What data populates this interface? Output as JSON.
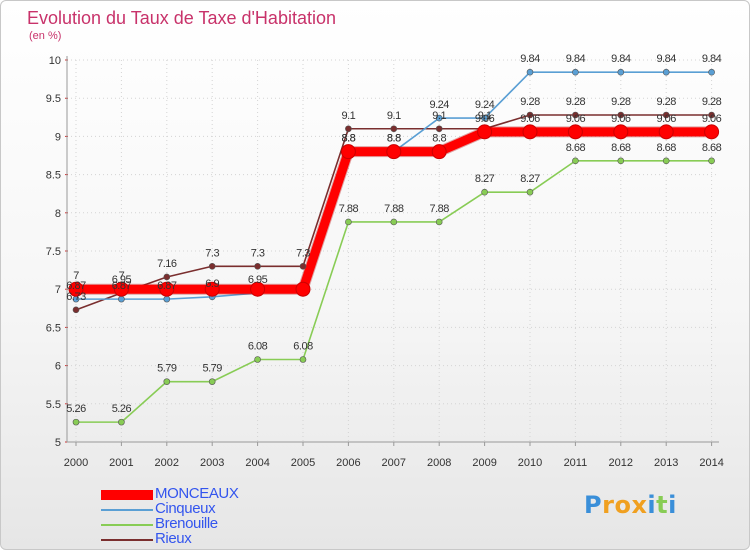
{
  "header": {
    "title": "Evolution du Taux de Taxe d'Habitation",
    "unit": "(en %)"
  },
  "chart_data": {
    "type": "line",
    "title": "Evolution du Taux de Taxe d'Habitation",
    "ylabel": "(en %)",
    "xlabel": "",
    "x": [
      "2000",
      "2001",
      "2002",
      "2003",
      "2004",
      "2005",
      "2006",
      "2007",
      "2008",
      "2009",
      "2010",
      "2011",
      "2012",
      "2013",
      "2014"
    ],
    "ylim": [
      5,
      10
    ],
    "yticks": [
      "5",
      "5.5",
      "6",
      "6.5",
      "7",
      "7.5",
      "8",
      "8.5",
      "9",
      "9.5",
      "10"
    ],
    "grid": true,
    "legend_position": "bottom-left",
    "series": [
      {
        "name": "MONCEAUX",
        "color": "#ff0000",
        "values": [
          7,
          7,
          7,
          7,
          7,
          7,
          8.8,
          8.8,
          8.8,
          9.06,
          9.06,
          9.06,
          9.06,
          9.06,
          9.06
        ]
      },
      {
        "name": "Cinqueux",
        "color": "#5a9fd4",
        "values": [
          6.87,
          6.87,
          6.87,
          6.9,
          6.95,
          6.99,
          8.8,
          8.8,
          9.24,
          9.24,
          9.84,
          9.84,
          9.84,
          9.84,
          9.84
        ]
      },
      {
        "name": "Brenouille",
        "color": "#88cc55",
        "values": [
          5.26,
          5.26,
          5.79,
          5.79,
          6.08,
          6.08,
          7.88,
          7.88,
          7.88,
          8.27,
          8.27,
          8.68,
          8.68,
          8.68,
          8.68
        ]
      },
      {
        "name": "Rieux",
        "color": "#7a2e2e",
        "values": [
          6.73,
          6.95,
          7.16,
          7.3,
          7.3,
          7.3,
          9.1,
          9.1,
          9.1,
          9.1,
          9.28,
          9.28,
          9.28,
          9.28,
          9.28
        ]
      }
    ],
    "value_labels": [
      {
        "series": 0,
        "texts": [
          "7",
          "7",
          "",
          "",
          "",
          "",
          "8.8",
          "8.8",
          "8.8",
          "9.06",
          "9.06",
          "9.06",
          "9.06",
          "9.06",
          "9.06"
        ]
      },
      {
        "series": 1,
        "texts": [
          "6.87",
          "6.87",
          "6.87",
          "6.9",
          "6.95",
          "",
          "8.8",
          "8.8",
          "9.24",
          "9.24",
          "9.84",
          "9.84",
          "9.84",
          "9.84",
          "9.84"
        ]
      },
      {
        "series": 2,
        "texts": [
          "5.26",
          "5.26",
          "5.79",
          "5.79",
          "6.08",
          "6.08",
          "7.88",
          "7.88",
          "7.88",
          "8.27",
          "8.27",
          "8.68",
          "8.68",
          "8.68",
          "8.68"
        ]
      },
      {
        "series": 3,
        "texts": [
          "6.73",
          "6.95",
          "7.16",
          "7.3",
          "7.3",
          "7.3",
          "9.1",
          "9.1",
          "9.1",
          "9.1",
          "9.28",
          "9.28",
          "9.28",
          "9.28",
          "9.28"
        ]
      }
    ]
  },
  "legend": {
    "items": [
      {
        "label": "MONCEAUX",
        "color": "#ff0000",
        "text_color": "#3355ee"
      },
      {
        "label": "Cinqueux",
        "color": "#5a9fd4",
        "text_color": "#3355ee"
      },
      {
        "label": "Brenouille",
        "color": "#88cc55",
        "text_color": "#3355ee"
      },
      {
        "label": "Rieux",
        "color": "#7a2e2e",
        "text_color": "#3355ee"
      }
    ]
  },
  "logo": {
    "text": "Proxiti",
    "letters": [
      {
        "ch": "P",
        "color": "#3a8fd9"
      },
      {
        "ch": "r",
        "color": "#f0a020"
      },
      {
        "ch": "o",
        "color": "#f0a020"
      },
      {
        "ch": "x",
        "color": "#f0a020"
      },
      {
        "ch": "i",
        "color": "#3a8fd9"
      },
      {
        "ch": "t",
        "color": "#88cc55"
      },
      {
        "ch": "i",
        "color": "#3a8fd9"
      }
    ]
  }
}
